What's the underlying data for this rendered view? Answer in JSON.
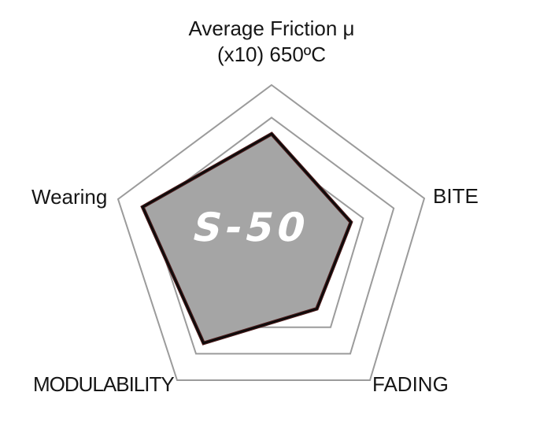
{
  "chart_title": {
    "line1": "Average Friction μ",
    "line2": "(x10) 650ºC"
  },
  "labels": {
    "left": "Wearing",
    "right": "BITE",
    "bottom_right": "FADING",
    "bottom_left": "MODULABILITY"
  },
  "logo": "S-50",
  "colors": {
    "background": "#ffffff",
    "grid": "#9b9b9b",
    "fill": "#a5a5a5",
    "edge": "#0b0b0b",
    "edge_fringe": "#4a1a1a",
    "text": "#161616",
    "logo_text": "#ffffff"
  },
  "chart_data": {
    "type": "radar",
    "title": "Average Friction μ (x10) 650ºC",
    "axes": [
      "Average Friction μ (x10) 650ºC",
      "BITE",
      "FADING",
      "MODULABILITY",
      "Wearing"
    ],
    "series": [
      {
        "name": "S-50",
        "values": [
          3.5,
          2.6,
          2.3,
          3.6,
          4.2
        ]
      }
    ],
    "scale_max": 5,
    "gridline_levels": [
      3,
      4,
      5
    ],
    "grid": "pentagon-rings",
    "spokes": "none",
    "legend": "none",
    "geometry": {
      "center": [
        345,
        315
      ],
      "axis_vectors_at_max": [
        [
          0,
          -207
        ],
        [
          194,
          -63
        ],
        [
          125,
          168
        ],
        [
          -120,
          168
        ],
        [
          -195,
          -62
        ]
      ]
    }
  }
}
